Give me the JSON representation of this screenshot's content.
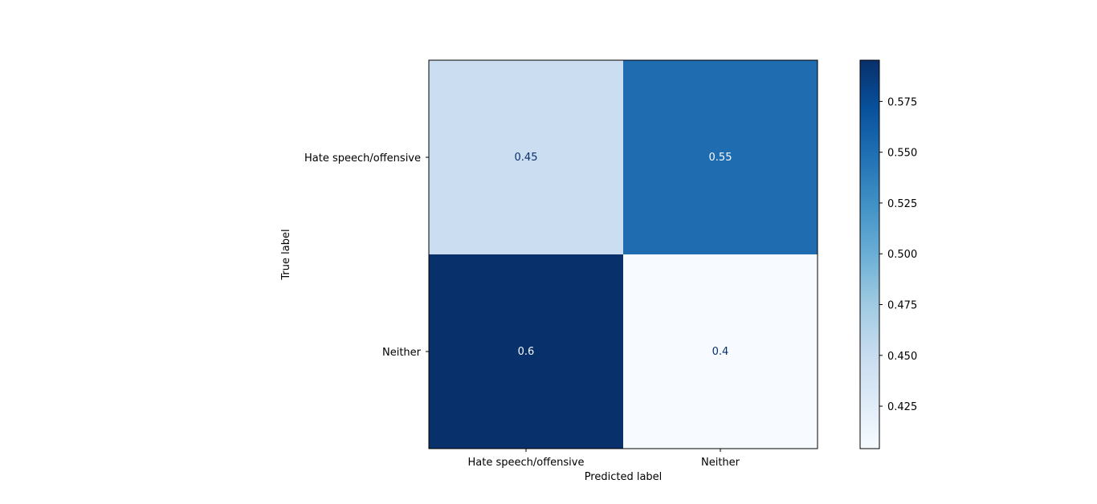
{
  "chart_data": {
    "type": "heatmap",
    "colormap": "Blues",
    "x_categories": [
      "Hate speech/offensive",
      "Neither"
    ],
    "y_categories": [
      "Hate speech/offensive",
      "Neither"
    ],
    "values": [
      [
        0.45,
        0.55
      ],
      [
        0.6,
        0.4
      ]
    ],
    "cell_labels": [
      [
        "0.45",
        "0.55"
      ],
      [
        "0.6",
        "0.4"
      ]
    ],
    "xlabel": "Predicted label",
    "ylabel": "True label",
    "colorbar": {
      "range": [
        0.4,
        0.6
      ],
      "ticks": [
        0.425,
        0.45,
        0.475,
        0.5,
        0.525,
        0.55,
        0.575
      ],
      "tick_labels": [
        "0.425",
        "0.450",
        "0.475",
        "0.500",
        "0.525",
        "0.550",
        "0.575"
      ]
    },
    "cell_colors": [
      [
        "#cbddf0",
        "#1f6cb0"
      ],
      [
        "#08306b",
        "#f7fbff"
      ]
    ],
    "text_colors": {
      "on_light": "#08306b",
      "on_dark": "#f7fbff"
    }
  }
}
